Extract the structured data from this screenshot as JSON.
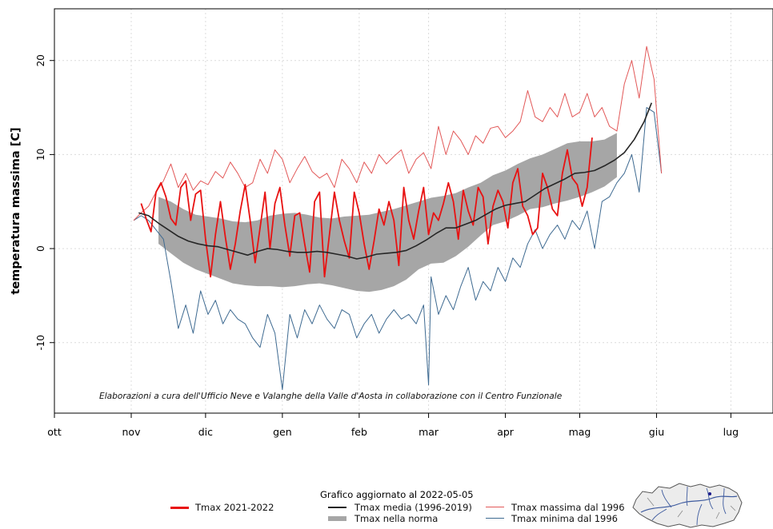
{
  "chart_data": {
    "type": "line",
    "title": "",
    "ylabel": "temperatura massima [C]",
    "ylim": [
      -17.5,
      25.5
    ],
    "yticks": [
      -10,
      0,
      10,
      20
    ],
    "ytick_labels": [
      "-10",
      "0",
      "10",
      "20"
    ],
    "x_axis": "day of season (0 = 1 ott)",
    "xlim": [
      0,
      290
    ],
    "month_ticks": [
      {
        "label": "ott",
        "day": 0
      },
      {
        "label": "nov",
        "day": 31
      },
      {
        "label": "dic",
        "day": 61
      },
      {
        "label": "gen",
        "day": 92
      },
      {
        "label": "feb",
        "day": 123
      },
      {
        "label": "mar",
        "day": 151
      },
      {
        "label": "apr",
        "day": 182
      },
      {
        "label": "mag",
        "day": 212
      },
      {
        "label": "giu",
        "day": 243
      },
      {
        "label": "lug",
        "day": 273
      }
    ],
    "grid": true,
    "annotation": "Elaborazioni a cura dell'Ufficio Neve e Valanghe della Valle d'Aosta in collaborazione con il Centro Funzionale",
    "series": [
      {
        "name": "Tmax nella norma",
        "kind": "band",
        "color": "#a6a6a6",
        "x": [
          42,
          47,
          52,
          57,
          62,
          67,
          72,
          77,
          82,
          87,
          92,
          97,
          102,
          107,
          112,
          117,
          122,
          127,
          132,
          137,
          142,
          147,
          152,
          157,
          162,
          167,
          172,
          177,
          182,
          187,
          192,
          197,
          202,
          207,
          212,
          217,
          222,
          227
        ],
        "upper": [
          5.5,
          5.0,
          4.2,
          3.6,
          3.4,
          3.2,
          2.9,
          2.8,
          3.0,
          3.5,
          3.7,
          3.8,
          3.6,
          3.3,
          3.2,
          3.4,
          3.5,
          3.6,
          3.9,
          4.2,
          4.6,
          5.0,
          5.4,
          5.6,
          5.9,
          6.5,
          7.0,
          7.8,
          8.3,
          9.0,
          9.6,
          10.0,
          10.6,
          11.2,
          11.4,
          11.4,
          11.6,
          12.3
        ],
        "lower": [
          0.5,
          -0.5,
          -1.5,
          -2.2,
          -2.7,
          -3.2,
          -3.7,
          -3.9,
          -4.0,
          -4.0,
          -4.1,
          -4.0,
          -3.8,
          -3.7,
          -3.9,
          -4.2,
          -4.5,
          -4.6,
          -4.4,
          -4.0,
          -3.3,
          -2.2,
          -1.6,
          -1.5,
          -0.8,
          0.2,
          1.4,
          2.5,
          2.9,
          3.5,
          4.2,
          4.4,
          4.8,
          5.1,
          5.5,
          6.0,
          6.6,
          7.6
        ]
      },
      {
        "name": "Tmax media (1996-2019)",
        "kind": "line",
        "color": "#262626",
        "x": [
          34,
          38,
          42,
          46,
          50,
          54,
          58,
          62,
          66,
          70,
          74,
          78,
          82,
          86,
          90,
          94,
          98,
          102,
          106,
          110,
          114,
          118,
          122,
          126,
          130,
          134,
          138,
          142,
          146,
          150,
          154,
          158,
          162,
          166,
          170,
          174,
          178,
          182,
          186,
          190,
          194,
          198,
          202,
          206,
          210,
          214,
          218,
          222,
          226,
          230,
          234,
          238,
          241
        ],
        "y": [
          3.8,
          3.5,
          2.7,
          2.0,
          1.3,
          0.8,
          0.5,
          0.3,
          0.2,
          -0.1,
          -0.4,
          -0.7,
          -0.3,
          0.0,
          -0.1,
          -0.3,
          -0.4,
          -0.4,
          -0.3,
          -0.4,
          -0.6,
          -0.8,
          -1.1,
          -0.9,
          -0.6,
          -0.5,
          -0.4,
          -0.2,
          0.3,
          0.9,
          1.6,
          2.2,
          2.2,
          2.6,
          3.0,
          3.6,
          4.2,
          4.6,
          4.8,
          5.0,
          5.7,
          6.4,
          6.9,
          7.4,
          8.0,
          8.1,
          8.3,
          8.8,
          9.4,
          10.2,
          11.6,
          13.5,
          15.5
        ]
      },
      {
        "name": "Tmax 2021-2022",
        "kind": "line",
        "color": "#e81212",
        "x": [
          35,
          37,
          39,
          41,
          43,
          45,
          47,
          49,
          51,
          53,
          55,
          57,
          59,
          61,
          63,
          65,
          67,
          69,
          71,
          73,
          75,
          77,
          79,
          81,
          83,
          85,
          87,
          89,
          91,
          93,
          95,
          97,
          99,
          101,
          103,
          105,
          107,
          109,
          111,
          113,
          115,
          117,
          119,
          121,
          123,
          125,
          127,
          129,
          131,
          133,
          135,
          137,
          139,
          141,
          143,
          145,
          147,
          149,
          151,
          153,
          155,
          157,
          159,
          161,
          163,
          165,
          167,
          169,
          171,
          173,
          175,
          177,
          179,
          181,
          183,
          185,
          187,
          189,
          191,
          193,
          195,
          197,
          199,
          201,
          203,
          205,
          207,
          209,
          211,
          213,
          215,
          217
        ],
        "y": [
          4.8,
          3.2,
          1.8,
          6.0,
          7.0,
          5.5,
          3.2,
          2.5,
          6.5,
          7.2,
          3.0,
          5.8,
          6.2,
          1.0,
          -3.0,
          1.5,
          5.0,
          1.2,
          -2.2,
          0.5,
          4.0,
          6.8,
          3.0,
          -1.5,
          2.2,
          6.0,
          0.0,
          4.8,
          6.5,
          2.5,
          -0.8,
          3.5,
          3.8,
          0.5,
          -2.5,
          5.0,
          6.0,
          -3.0,
          1.5,
          6.0,
          3.0,
          0.8,
          -1.0,
          6.0,
          3.8,
          0.5,
          -2.2,
          0.8,
          4.2,
          2.5,
          5.0,
          3.0,
          -1.8,
          6.5,
          3.0,
          1.0,
          4.0,
          6.5,
          1.5,
          3.8,
          3.0,
          4.8,
          7.0,
          5.0,
          1.0,
          6.2,
          4.0,
          2.5,
          6.5,
          5.5,
          0.5,
          4.5,
          6.2,
          5.0,
          2.2,
          7.0,
          8.5,
          4.5,
          3.5,
          1.5,
          2.2,
          8.0,
          6.5,
          4.2,
          3.5,
          8.0,
          10.5,
          7.5,
          6.8,
          4.5,
          6.5,
          11.8
        ]
      },
      {
        "name": "Tmax massima dal 1996",
        "kind": "line",
        "color": "#e25858",
        "x": [
          32,
          35,
          38,
          41,
          44,
          47,
          50,
          53,
          56,
          59,
          62,
          65,
          68,
          71,
          74,
          77,
          80,
          83,
          86,
          89,
          92,
          95,
          98,
          101,
          104,
          107,
          110,
          113,
          116,
          119,
          122,
          125,
          128,
          131,
          134,
          137,
          140,
          143,
          146,
          149,
          152,
          155,
          158,
          161,
          164,
          167,
          170,
          173,
          176,
          179,
          182,
          185,
          188,
          191,
          194,
          197,
          200,
          203,
          206,
          209,
          212,
          215,
          218,
          221,
          224,
          227,
          230,
          233,
          236,
          239,
          242,
          245
        ],
        "y": [
          3.0,
          3.8,
          4.5,
          6.0,
          7.2,
          9.0,
          6.5,
          8.0,
          6.2,
          7.2,
          6.8,
          8.2,
          7.5,
          9.2,
          8.0,
          6.5,
          7.0,
          9.5,
          8.0,
          10.5,
          9.5,
          7.0,
          8.5,
          9.8,
          8.2,
          7.5,
          8.0,
          6.5,
          9.5,
          8.5,
          7.0,
          9.2,
          8.0,
          10.0,
          9.0,
          9.8,
          10.5,
          8.0,
          9.5,
          10.2,
          8.5,
          13.0,
          10.0,
          12.5,
          11.5,
          10.0,
          12.0,
          11.2,
          12.8,
          13.0,
          11.8,
          12.5,
          13.5,
          16.8,
          14.0,
          13.5,
          15.0,
          14.0,
          16.5,
          14.0,
          14.5,
          16.5,
          14.0,
          15.0,
          13.0,
          12.5,
          17.5,
          20.0,
          16.0,
          21.5,
          18.0,
          8.0
        ]
      },
      {
        "name": "Tmax minima dal 1996",
        "kind": "line",
        "color": "#3e6a91",
        "x": [
          32,
          35,
          38,
          41,
          44,
          47,
          50,
          53,
          56,
          59,
          62,
          65,
          68,
          71,
          74,
          77,
          80,
          83,
          86,
          89,
          92,
          95,
          98,
          101,
          104,
          107,
          110,
          113,
          116,
          119,
          122,
          125,
          128,
          131,
          134,
          137,
          140,
          143,
          146,
          149,
          151,
          152,
          155,
          158,
          161,
          164,
          167,
          170,
          173,
          176,
          179,
          182,
          185,
          188,
          191,
          194,
          197,
          200,
          203,
          206,
          209,
          212,
          215,
          218,
          221,
          224,
          227,
          230,
          233,
          236,
          239,
          242,
          245
        ],
        "y": [
          3.0,
          3.5,
          3.0,
          2.0,
          1.0,
          -3.5,
          -8.5,
          -6.0,
          -9.0,
          -4.5,
          -7.0,
          -5.5,
          -8.0,
          -6.5,
          -7.5,
          -8.0,
          -9.5,
          -10.5,
          -7.0,
          -9.0,
          -15.0,
          -7.0,
          -9.5,
          -6.5,
          -8.0,
          -6.0,
          -7.5,
          -8.5,
          -6.5,
          -7.0,
          -9.5,
          -8.0,
          -7.0,
          -9.0,
          -7.5,
          -6.5,
          -7.5,
          -7.0,
          -8.0,
          -6.0,
          -14.5,
          -3.0,
          -7.0,
          -5.0,
          -6.5,
          -4.0,
          -2.0,
          -5.5,
          -3.5,
          -4.5,
          -2.0,
          -3.5,
          -1.0,
          -2.0,
          0.5,
          2.0,
          0.0,
          1.5,
          2.5,
          1.0,
          3.0,
          2.0,
          4.0,
          0.0,
          5.0,
          5.5,
          7.0,
          8.0,
          10.0,
          6.0,
          15.0,
          14.5,
          8.0
        ]
      }
    ]
  },
  "legend": {
    "updated": "Grafico aggiornato al 2022-05-05",
    "items": [
      {
        "label": "Tmax 2021-2022",
        "color": "#e81212"
      },
      {
        "label": "Tmax media (1996-2019)",
        "color": "#262626"
      },
      {
        "label": "Tmax nella norma",
        "color": "#a6a6a6"
      },
      {
        "label": "Tmax massima dal 1996",
        "color": "#e25858"
      },
      {
        "label": "Tmax minima dal 1996",
        "color": "#3e6a91"
      }
    ]
  }
}
